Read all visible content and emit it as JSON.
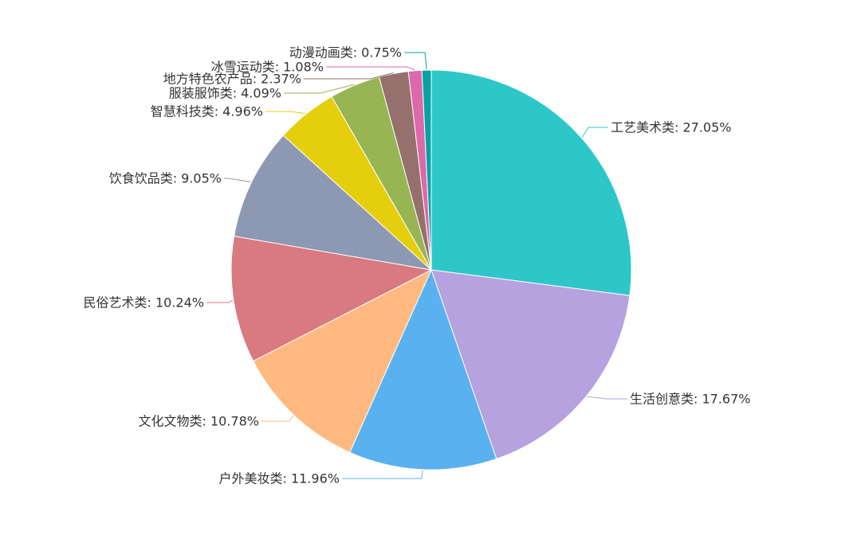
{
  "chart_data": {
    "type": "pie",
    "title": "",
    "legend": "none",
    "label_format": "{name}: {value}%",
    "slices": [
      {
        "name": "工艺美术类",
        "value": 27.05,
        "color": "#2ec7c9"
      },
      {
        "name": "生活创意类",
        "value": 17.67,
        "color": "#b6a2de"
      },
      {
        "name": "户外美妆类",
        "value": 11.96,
        "color": "#5ab1ef"
      },
      {
        "name": "文化文物类",
        "value": 10.78,
        "color": "#ffb980"
      },
      {
        "name": "民俗艺术类",
        "value": 10.24,
        "color": "#d87a80"
      },
      {
        "name": "饮食饮品类",
        "value": 9.05,
        "color": "#8d98b3"
      },
      {
        "name": "智慧科技类",
        "value": 4.96,
        "color": "#e5cf0d"
      },
      {
        "name": "服装服饰类",
        "value": 4.09,
        "color": "#97b552"
      },
      {
        "name": "地方特色农产品",
        "value": 2.37,
        "color": "#95706d"
      },
      {
        "name": "冰雪运动类",
        "value": 1.08,
        "color": "#dc69aa"
      },
      {
        "name": "动漫动画类",
        "value": 0.75,
        "color": "#07a2a4"
      }
    ]
  }
}
